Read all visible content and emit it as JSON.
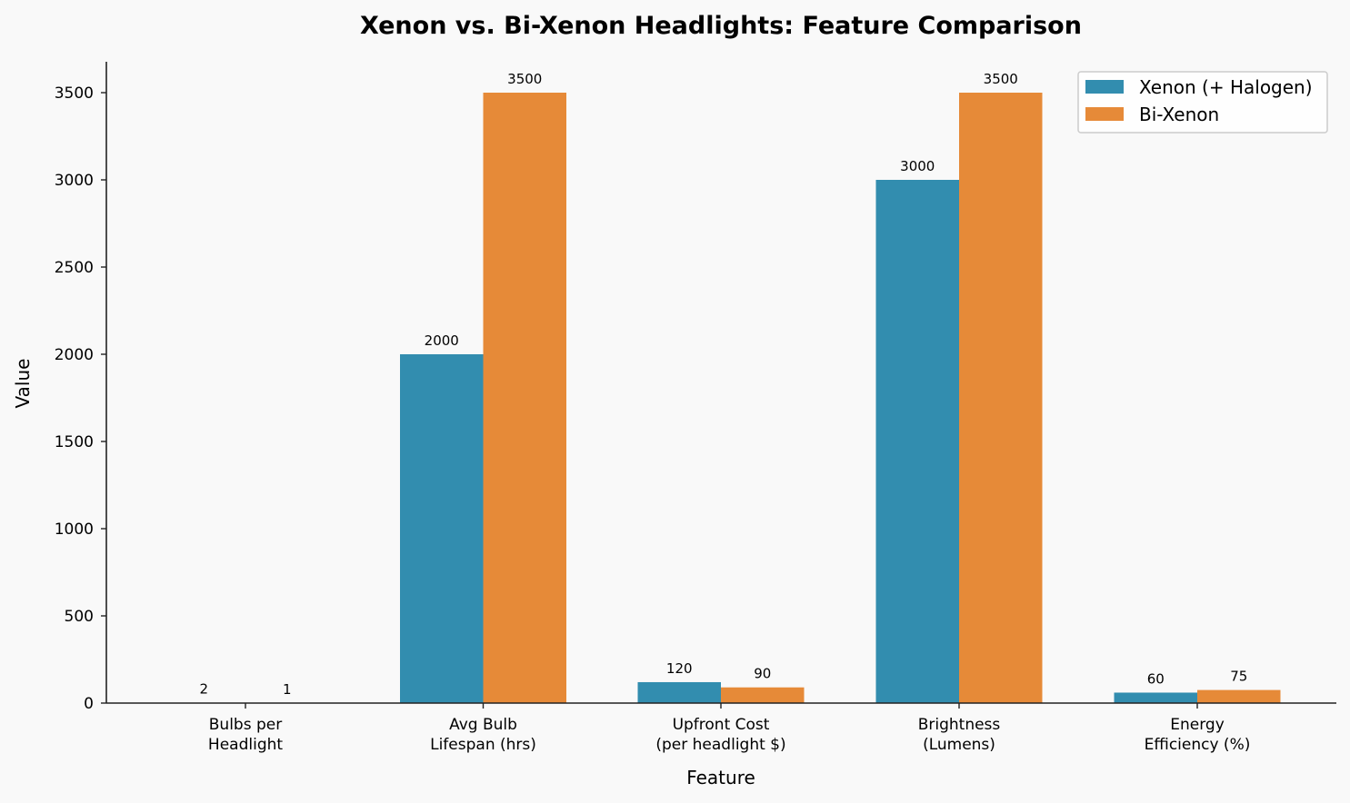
{
  "chart_data": {
    "type": "bar",
    "title": "Xenon vs. Bi-Xenon Headlights: Feature Comparison",
    "xlabel": "Feature",
    "ylabel": "Value",
    "categories": [
      "Bulbs per\nHeadlight",
      "Avg Bulb\nLifespan (hrs)",
      "Upfront Cost\n(per headlight $)",
      "Brightness\n(Lumens)",
      "Energy\nEfficiency (%)"
    ],
    "series": [
      {
        "name": "Xenon (+ Halogen)",
        "color": "#328daf",
        "values": [
          2,
          2000,
          120,
          3000,
          60
        ]
      },
      {
        "name": "Bi-Xenon",
        "color": "#e68a38",
        "values": [
          1,
          3500,
          90,
          3500,
          75
        ]
      }
    ],
    "ylim": [
      0,
      3675
    ],
    "yticks": [
      0,
      500,
      1000,
      1500,
      2000,
      2500,
      3000,
      3500
    ],
    "grid": false,
    "legend_position": "upper right",
    "data_labels": true
  }
}
